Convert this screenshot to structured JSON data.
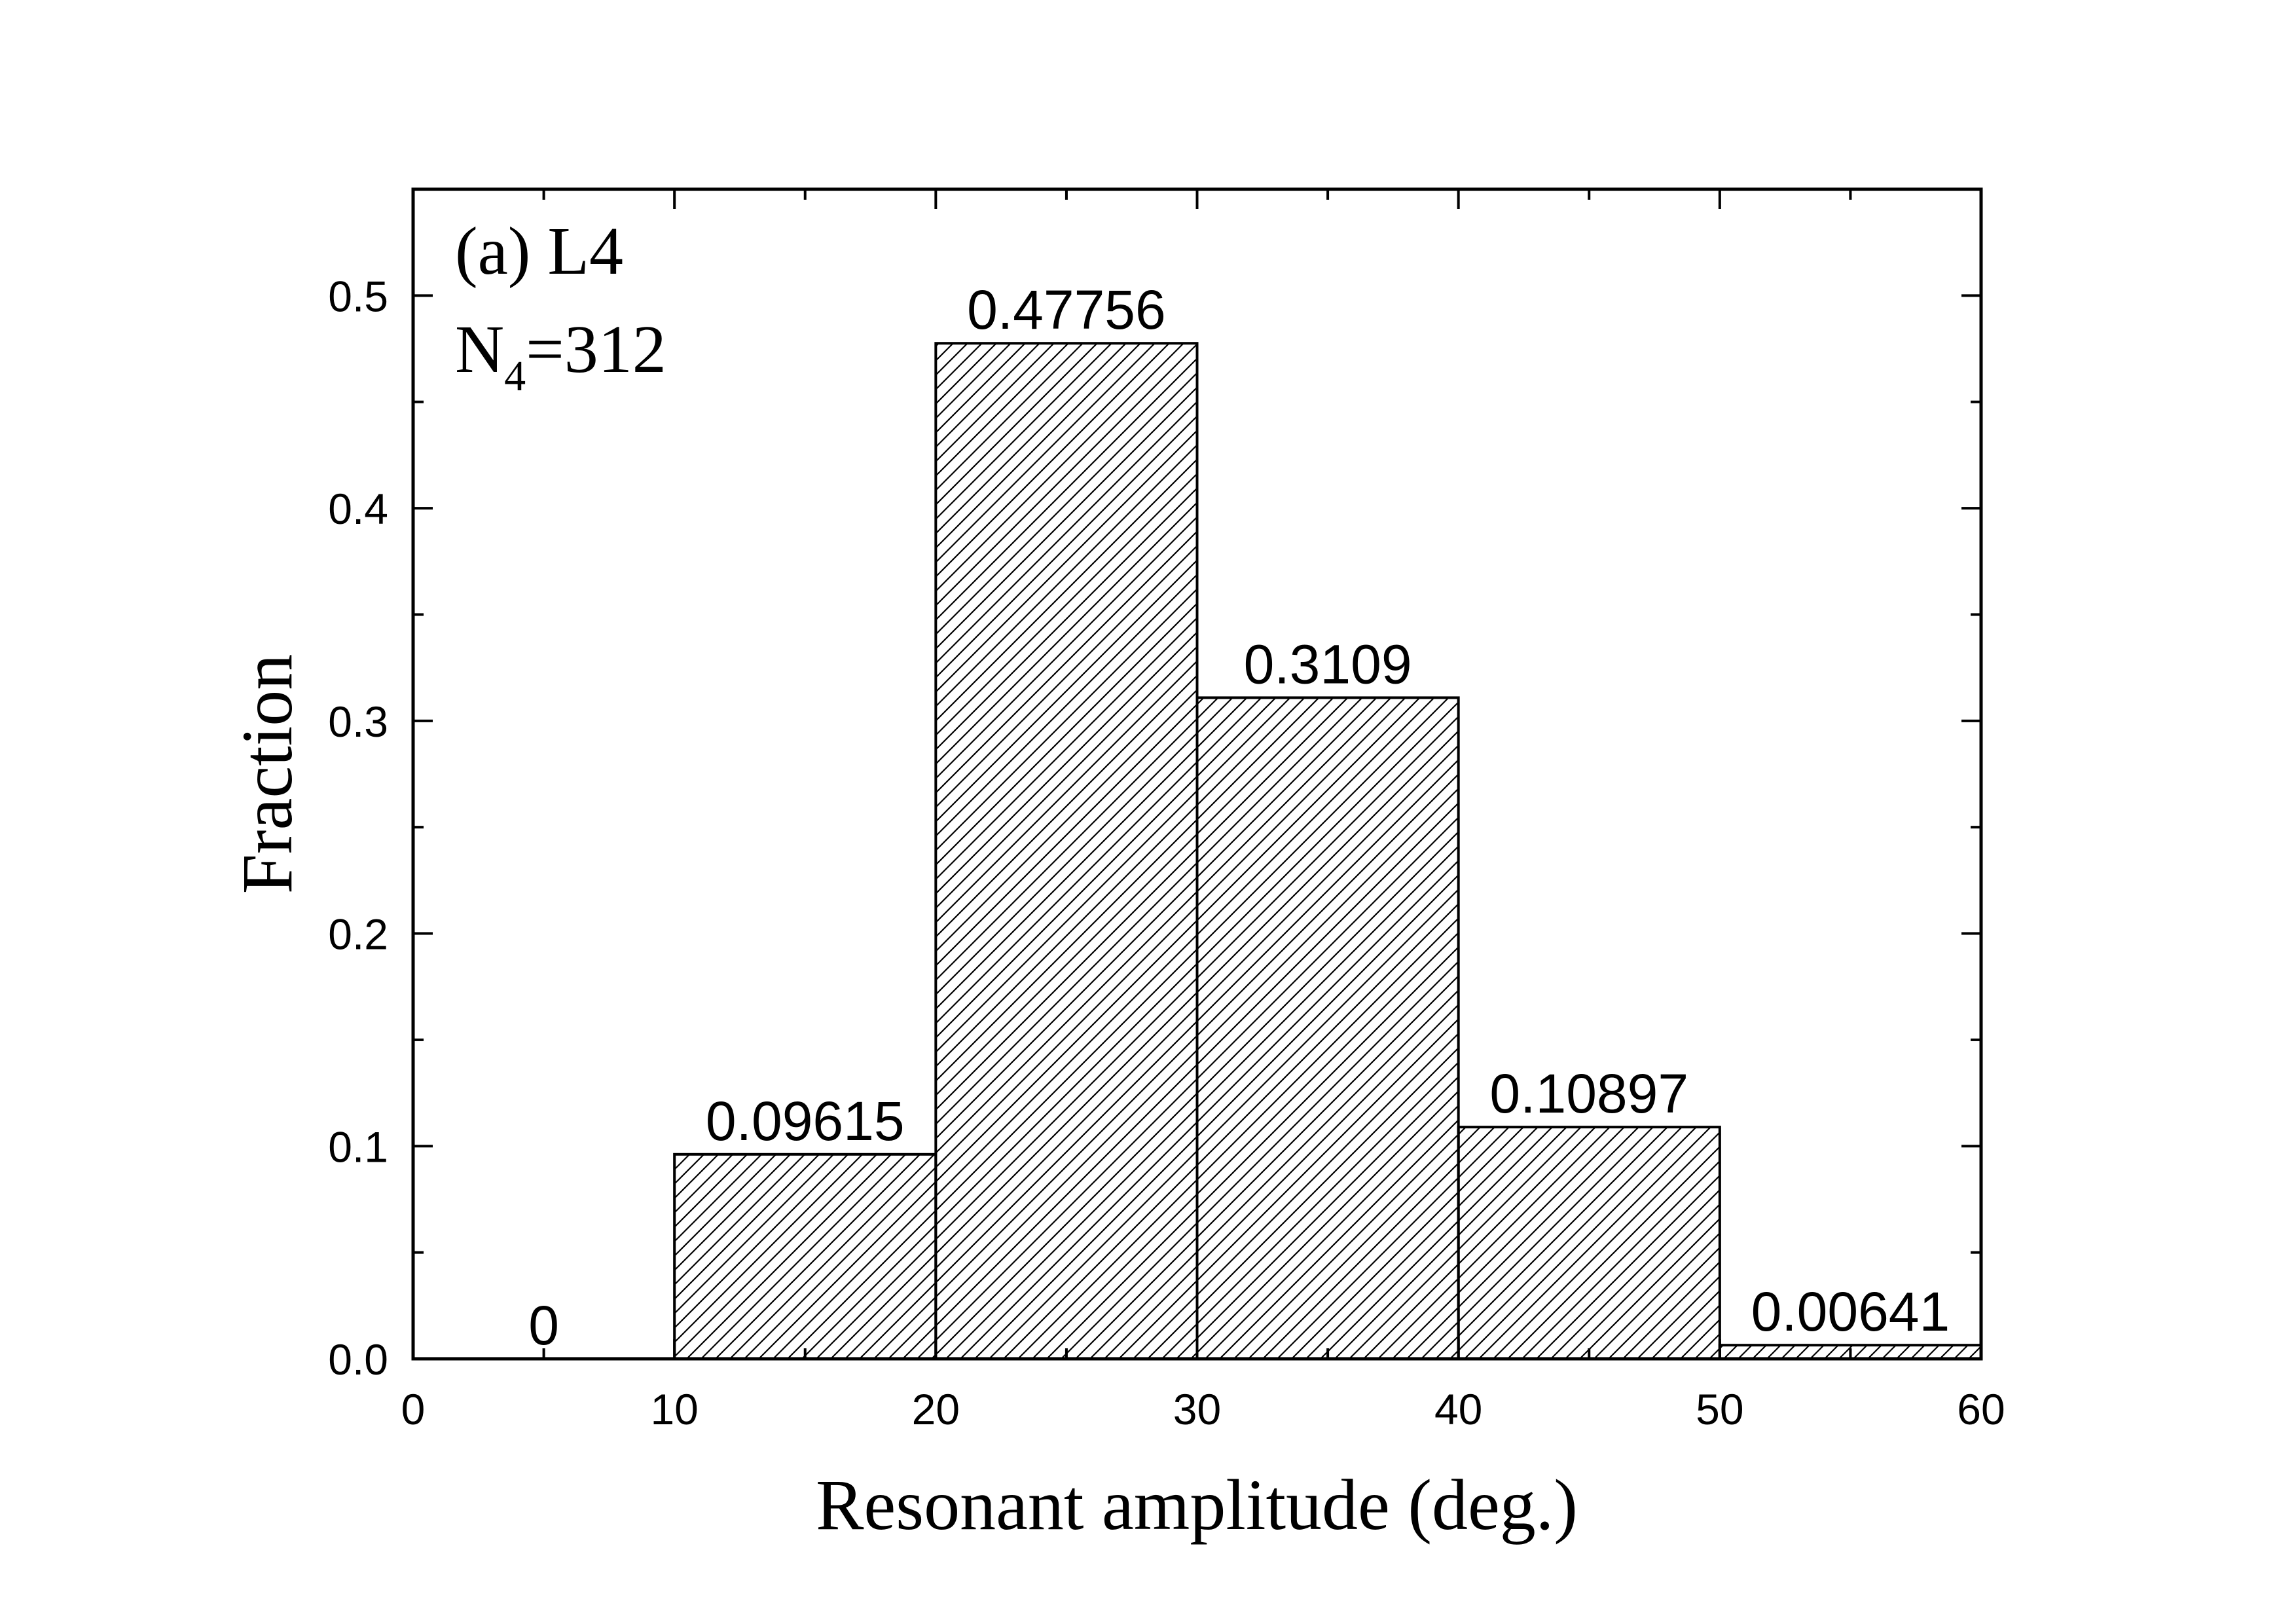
{
  "chart_data": {
    "type": "bar",
    "subtype": "histogram",
    "panel_label": "(a) L4",
    "annotation": {
      "main": "N",
      "subscript": "4",
      "rest": "=312"
    },
    "xlabel": "Resonant amplitude (deg.)",
    "ylabel": "Fraction",
    "xlim": [
      0,
      60
    ],
    "ylim": [
      0,
      0.55
    ],
    "x_ticks": [
      0,
      10,
      20,
      30,
      40,
      50,
      60
    ],
    "y_ticks": [
      0.0,
      0.1,
      0.2,
      0.3,
      0.4,
      0.5
    ],
    "y_tick_labels": [
      "0.0",
      "0.1",
      "0.2",
      "0.3",
      "0.4",
      "0.5"
    ],
    "bins": [
      {
        "from": 0,
        "to": 10,
        "value": 0,
        "label": "0"
      },
      {
        "from": 10,
        "to": 20,
        "value": 0.09615,
        "label": "0.09615"
      },
      {
        "from": 20,
        "to": 30,
        "value": 0.47756,
        "label": "0.47756"
      },
      {
        "from": 30,
        "to": 40,
        "value": 0.3109,
        "label": "0.3109"
      },
      {
        "from": 40,
        "to": 50,
        "value": 0.10897,
        "label": "0.10897"
      },
      {
        "from": 50,
        "to": 60,
        "value": 0.00641,
        "label": "0.00641"
      }
    ],
    "bar_fill": "diagonal-hatch",
    "grid": false,
    "colors": {
      "bar_edge": "#000000",
      "hatch": "#000000",
      "background": "#ffffff"
    }
  }
}
